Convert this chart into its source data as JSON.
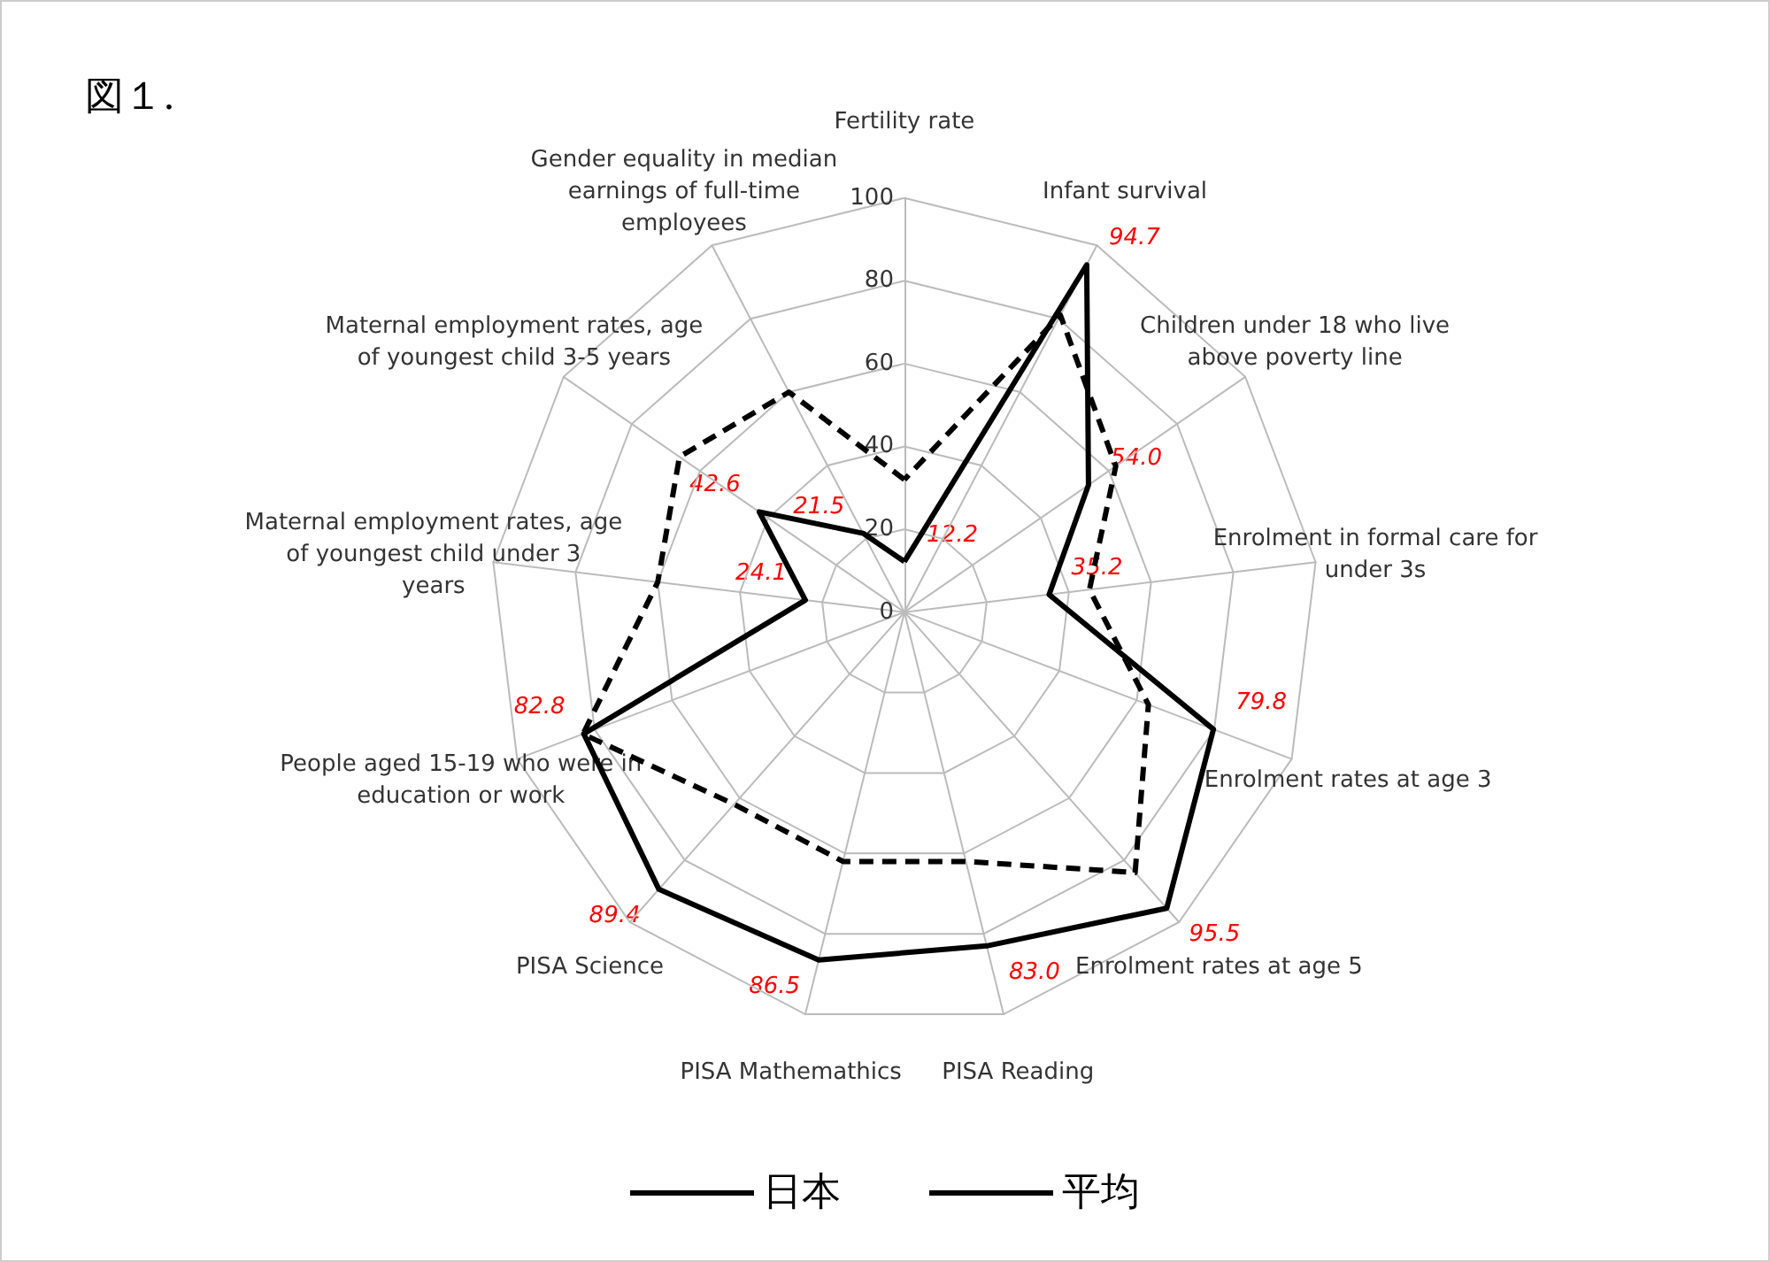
{
  "chart_data": {
    "type": "radar",
    "title": "図１.",
    "categories": [
      "Fertility rate",
      "Infant survival",
      "Children under 18 who live above poverty line",
      "Enrolment in formal care for under 3s",
      "Enrolment rates at age 3",
      "Enrolment rates at age 5",
      "PISA Reading",
      "PISA Mathemathics",
      "PISA Science",
      "People aged 15-19 who were in education or work",
      "Maternal employment rates, age of youngest child under 3 years",
      "Maternal employment rates, age of youngest child 3-5 years",
      "Gender equality in median earnings of full-time employees"
    ],
    "series": [
      {
        "name": "日本",
        "color": "#000000",
        "line_style": "solid",
        "values": [
          12.2,
          94.7,
          54.0,
          35.2,
          79.8,
          95.5,
          83.0,
          86.5,
          89.4,
          82.8,
          24.1,
          42.6,
          21.5
        ],
        "value_labels": [
          "12.2",
          "94.7",
          "54.0",
          "35.2",
          "79.8",
          "95.5",
          "83.0",
          "86.5",
          "89.4",
          "82.8",
          "24.1",
          "42.6",
          "21.5"
        ]
      },
      {
        "name": "平均",
        "color": "#000000",
        "line_style": "dashed",
        "values": [
          32,
          81,
          62,
          45,
          63,
          84,
          62,
          62,
          62,
          83,
          60,
          66,
          60
        ]
      }
    ],
    "ylim": [
      0,
      100
    ],
    "yticks": [
      0,
      20,
      40,
      60,
      80,
      100
    ],
    "grid": true,
    "legend": "bottom",
    "marker": "none"
  }
}
